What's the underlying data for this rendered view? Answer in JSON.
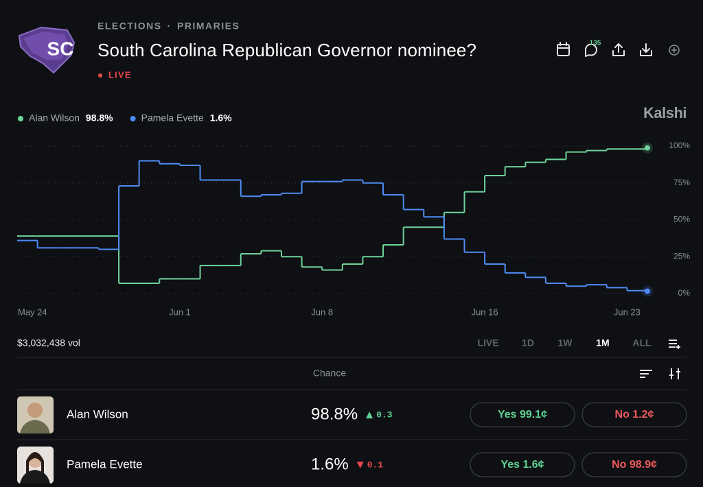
{
  "header": {
    "badge": "SC",
    "breadcrumb": [
      "ELECTIONS",
      "PRIMARIES"
    ],
    "breadcrumb_separator": "·",
    "title": "South Carolina Republican Governor nominee?",
    "status": "LIVE",
    "comments": 135,
    "brand": "Kalshi"
  },
  "chart_data": {
    "type": "line",
    "step": true,
    "categories": [
      "May 24",
      null,
      null,
      null,
      null,
      null,
      null,
      null,
      "Jun 1",
      null,
      null,
      null,
      null,
      null,
      null,
      "Jun 8",
      null,
      null,
      null,
      null,
      null,
      null,
      null,
      "Jun 16",
      null,
      null,
      null,
      null,
      null,
      null,
      "Jun 23",
      null
    ],
    "series": [
      {
        "name": "Alan Wilson",
        "legend_label": "98.8%",
        "color": "#6fd49b",
        "values": [
          39,
          39,
          39,
          39,
          39,
          7,
          7,
          10,
          10,
          19,
          19,
          27,
          29,
          25,
          18,
          16,
          20,
          25,
          33,
          45,
          45,
          55,
          69,
          80,
          86,
          89,
          91,
          96,
          97,
          98,
          98,
          98.8
        ]
      },
      {
        "name": "Pamela Evette",
        "legend_label": "1.6%",
        "color": "#4f8cf6",
        "values": [
          36,
          31,
          31,
          31,
          30,
          73,
          90,
          88,
          87,
          77,
          77,
          66,
          67,
          68,
          76,
          76,
          77,
          75,
          67,
          57,
          52,
          37,
          28,
          20,
          14,
          11,
          7,
          5,
          6,
          4,
          2,
          1.6
        ]
      }
    ],
    "ylim": [
      0,
      100
    ],
    "yticks": [
      {
        "value": 0,
        "label": "0%"
      },
      {
        "value": 25,
        "label": "25%"
      },
      {
        "value": 50,
        "label": "50%"
      },
      {
        "value": 75,
        "label": "75%"
      },
      {
        "value": 100,
        "label": "100%"
      }
    ],
    "grid": true
  },
  "volume": "$3,032,438 vol",
  "ranges": [
    {
      "label": "LIVE"
    },
    {
      "label": "1D"
    },
    {
      "label": "1W"
    },
    {
      "label": "1M",
      "active": true
    },
    {
      "label": "ALL"
    }
  ],
  "table": {
    "column": "Chance",
    "rows": [
      {
        "name": "Alan Wilson",
        "chance": "98.8%",
        "change": 0.3,
        "direction": "up",
        "yes": "Yes 99.1¢",
        "no": "No 1.2¢"
      },
      {
        "name": "Pamela Evette",
        "chance": "1.6%",
        "change": 0.1,
        "direction": "down",
        "yes": "Yes 1.6¢",
        "no": "No 98.9¢"
      }
    ]
  }
}
